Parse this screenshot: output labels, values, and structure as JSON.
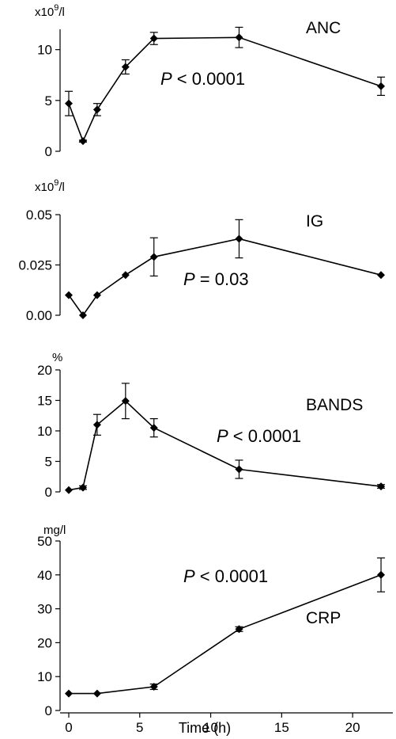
{
  "chart_data": {
    "type": "line",
    "xlabel": "Time (h)",
    "xlim": [
      0,
      23
    ],
    "xticks": [
      0,
      5,
      10,
      15,
      20
    ],
    "x": [
      0,
      1,
      2,
      4,
      6,
      12,
      22
    ],
    "panels": [
      {
        "name": "ANC",
        "unit_base": "x10",
        "unit_exp": "9",
        "unit_tail": "/l",
        "ylim": [
          0,
          12
        ],
        "yticks": [
          {
            "v": 0,
            "t": "0"
          },
          {
            "v": 5,
            "t": "5"
          },
          {
            "v": 10,
            "t": "10"
          }
        ],
        "p_prefix": "P",
        "p_text": " < 0.0001",
        "values": [
          4.7,
          1.0,
          4.1,
          8.3,
          11.1,
          11.2,
          6.4
        ],
        "errors": [
          1.2,
          0.1,
          0.6,
          0.7,
          0.6,
          1.0,
          0.9
        ]
      },
      {
        "name": "IG",
        "unit_base": "x10",
        "unit_exp": "9",
        "unit_tail": "/l",
        "ylim": [
          0,
          0.05
        ],
        "yticks": [
          {
            "v": 0,
            "t": "0.00"
          },
          {
            "v": 0.025,
            "t": "0.025"
          },
          {
            "v": 0.05,
            "t": "0.05"
          }
        ],
        "p_prefix": "P",
        "p_text": " = 0.03",
        "values": [
          0.01,
          0.0,
          0.01,
          0.02,
          0.029,
          0.038,
          0.02
        ],
        "errors": [
          0,
          0,
          0,
          0,
          0.0095,
          0.0095,
          0
        ]
      },
      {
        "name": "BANDS",
        "unit_base": "%",
        "unit_exp": "",
        "unit_tail": "",
        "ylim": [
          0,
          20
        ],
        "yticks": [
          {
            "v": 0,
            "t": "0"
          },
          {
            "v": 5,
            "t": "5"
          },
          {
            "v": 10,
            "t": "10"
          },
          {
            "v": 15,
            "t": "15"
          },
          {
            "v": 20,
            "t": "20"
          }
        ],
        "p_prefix": "P",
        "p_text": " < 0.0001",
        "values": [
          0.3,
          0.7,
          11.0,
          14.9,
          10.5,
          3.7,
          0.9
        ],
        "errors": [
          0,
          0.3,
          1.7,
          2.9,
          1.5,
          1.5,
          0.3
        ]
      },
      {
        "name": "CRP",
        "unit_base": "mg/l",
        "unit_exp": "",
        "unit_tail": "",
        "ylim": [
          0,
          50
        ],
        "yticks": [
          {
            "v": 0,
            "t": "0"
          },
          {
            "v": 10,
            "t": "10"
          },
          {
            "v": 20,
            "t": "20"
          },
          {
            "v": 30,
            "t": "30"
          },
          {
            "v": 40,
            "t": "40"
          },
          {
            "v": 50,
            "t": "50"
          }
        ],
        "p_prefix": "P",
        "p_text": " < 0.0001",
        "values": [
          5.0,
          5.0,
          7.0,
          24.0,
          40.0
        ],
        "x_override": [
          0,
          2,
          6,
          12,
          22
        ],
        "errors": [
          0,
          0,
          0.8,
          0.7,
          5.0
        ]
      }
    ]
  }
}
